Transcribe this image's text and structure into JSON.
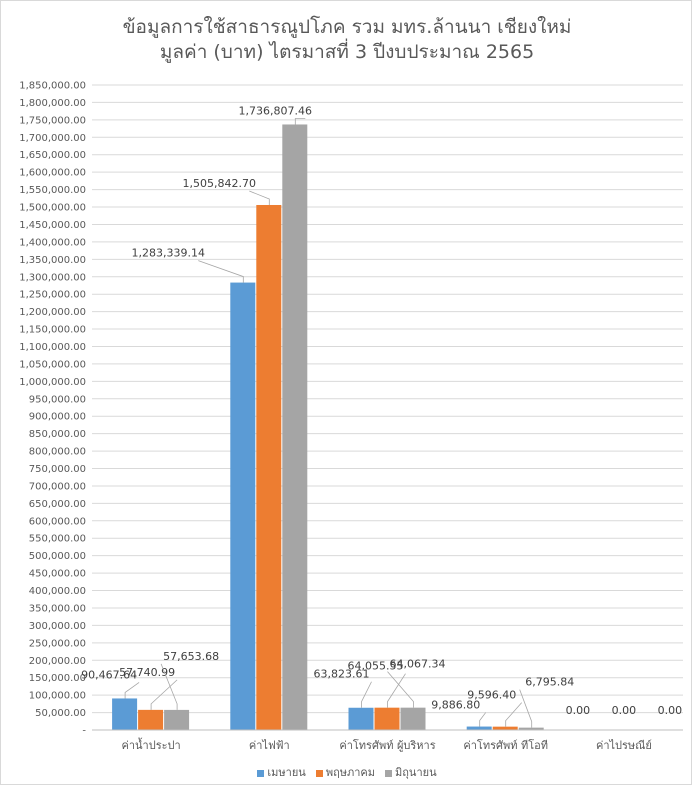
{
  "chart_data": {
    "type": "bar",
    "title": "ข้อมูลการใช้สาธารณูปโภค รวม มทร.ล้านนา เชียงใหม่",
    "subtitle": "มูลค่า (บาท) ไตรมาสที่ 3 ปีงบประมาณ 2565",
    "categories": [
      "ค่าน้ำประปา",
      "ค่าไฟฟ้า",
      "ค่าโทรศัพท์ ผู้บริหาร",
      "ค่าโทรศัพท์ ทีโอที",
      "ค่าไปรษณีย์"
    ],
    "series": [
      {
        "name": "เมษายน",
        "color": "#5b9bd5",
        "values": [
          90467.64,
          1283339.14,
          63823.61,
          9886.8,
          0.0
        ],
        "labels": [
          "90,467.64",
          "1,283,339.14",
          "63,823.61",
          "9,886.80",
          "0.00"
        ]
      },
      {
        "name": "พฤษภาคม",
        "color": "#ed7d31",
        "values": [
          57740.99,
          1505842.7,
          64055.55,
          9596.4,
          0.0
        ],
        "labels": [
          "57,740.99",
          "1,505,842.70",
          "64,055.55",
          "9,596.40",
          "0.00"
        ]
      },
      {
        "name": "มิถุนายน",
        "color": "#a5a5a5",
        "values": [
          57653.68,
          1736807.46,
          64067.34,
          6795.84,
          0.0
        ],
        "labels": [
          "57,653.68",
          "1,736,807.46",
          "64,067.34",
          "6,795.84",
          "0.00"
        ]
      }
    ],
    "ylim": [
      0,
      1850000
    ],
    "ytick_step": 50000,
    "ytick_zero_label": "-",
    "grid": true,
    "legend_position": "bottom"
  }
}
